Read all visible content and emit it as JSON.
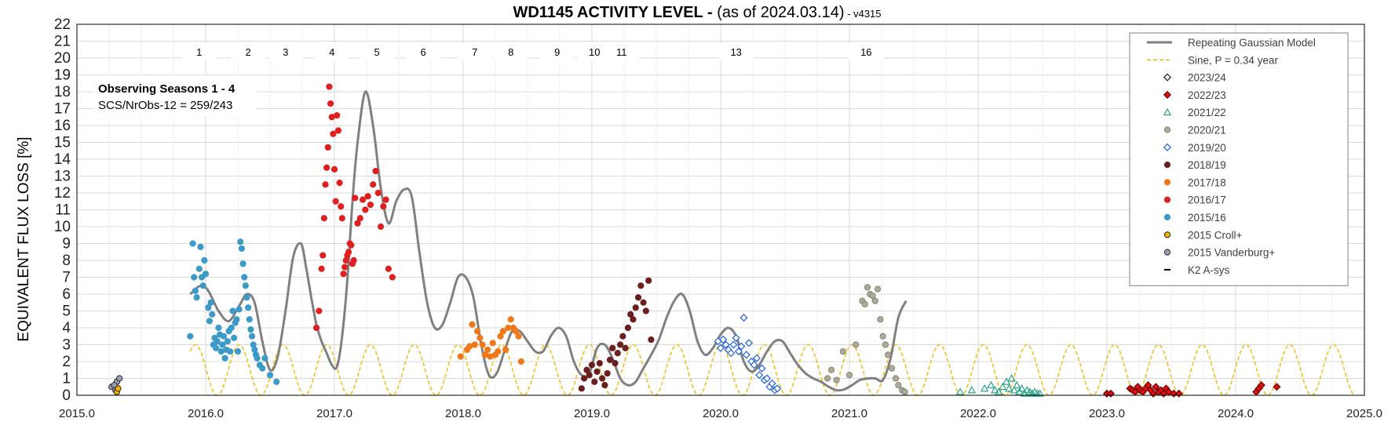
{
  "chart_data": {
    "type": "scatter",
    "title_main": "WD1145 ACTIVITY LEVEL - ",
    "title_sub": "(as of 2024.03.14)",
    "title_version": " - v4315",
    "xlabel": "",
    "ylabel": "EQUIVALENT FLUX LOSS [%]",
    "xlim": [
      2015.0,
      2025.0
    ],
    "ylim": [
      0,
      22
    ],
    "x_ticks": [
      "2015.0",
      "2016.0",
      "2017.0",
      "2018.0",
      "2019.0",
      "2020.0",
      "2021.0",
      "2022.0",
      "2023.0",
      "2024.0",
      "2025.0"
    ],
    "y_ticks": [
      "0",
      "1",
      "2",
      "3",
      "4",
      "5",
      "6",
      "7",
      "8",
      "9",
      "10",
      "11",
      "12",
      "13",
      "14",
      "15",
      "16",
      "17",
      "18",
      "19",
      "20",
      "21",
      "22"
    ],
    "grid": true,
    "legend_position": "top-right",
    "annotation": {
      "title": "Observing Seasons 1 - 4",
      "text": "SCS/NrObs-12 = 259/243"
    },
    "peak_labels": [
      {
        "label": "1",
        "x": 15.95
      },
      {
        "label": "2",
        "x": 16.33
      },
      {
        "label": "3",
        "x": 16.62
      },
      {
        "label": "4",
        "x": 16.98
      },
      {
        "label": "5",
        "x": 17.33
      },
      {
        "label": "6",
        "x": 17.69
      },
      {
        "label": "7",
        "x": 18.09
      },
      {
        "label": "8",
        "x": 18.37
      },
      {
        "label": "9",
        "x": 18.73
      },
      {
        "label": "10",
        "x": 19.02
      },
      {
        "label": "11",
        "x": 19.23
      },
      {
        "label": "13",
        "x": 20.12
      },
      {
        "label": "16",
        "x": 21.13
      }
    ],
    "lines": [
      {
        "name": "Repeating Gaussian Model",
        "color": "#808080",
        "style": "solid",
        "x": [
          2015.88,
          2015.96,
          2016.02,
          2016.1,
          2016.18,
          2016.26,
          2016.32,
          2016.38,
          2016.44,
          2016.5,
          2016.56,
          2016.62,
          2016.68,
          2016.74,
          2016.78,
          2016.82,
          2016.86,
          2016.9,
          2016.94,
          2016.98,
          2017.02,
          2017.06,
          2017.1,
          2017.14,
          2017.18,
          2017.24,
          2017.3,
          2017.36,
          2017.42,
          2017.48,
          2017.54,
          2017.6,
          2017.66,
          2017.72,
          2017.78,
          2017.84,
          2017.9,
          2017.96,
          2018.02,
          2018.08,
          2018.14,
          2018.2,
          2018.26,
          2018.32,
          2018.38,
          2018.44,
          2018.5,
          2018.56,
          2018.62,
          2018.68,
          2018.74,
          2018.8,
          2018.86,
          2018.92,
          2018.98,
          2019.04,
          2019.1,
          2019.16,
          2019.22,
          2019.28,
          2019.34,
          2019.4,
          2019.46,
          2019.52,
          2019.58,
          2019.64,
          2019.7,
          2019.76,
          2019.82,
          2019.88,
          2019.94,
          2020.0,
          2020.06,
          2020.12,
          2020.18,
          2020.24,
          2020.3,
          2020.36,
          2020.42,
          2020.48,
          2020.54,
          2020.6,
          2020.66,
          2020.72,
          2020.78,
          2020.84,
          2020.9,
          2020.96,
          2021.02,
          2021.08,
          2021.14,
          2021.2,
          2021.26,
          2021.32,
          2021.38,
          2021.44
        ],
        "y": [
          6.0,
          6.5,
          6.2,
          5.0,
          4.4,
          5.3,
          6.0,
          5.5,
          3.2,
          1.5,
          2.3,
          5.0,
          8.2,
          9.0,
          7.6,
          5.8,
          4.2,
          3.2,
          2.5,
          1.8,
          1.7,
          3.5,
          6.8,
          11.5,
          15.0,
          18.0,
          16.0,
          12.3,
          10.2,
          11.5,
          12.2,
          11.8,
          8.5,
          5.5,
          4.0,
          4.2,
          5.5,
          7.0,
          7.0,
          5.8,
          3.0,
          1.2,
          1.3,
          2.6,
          3.8,
          3.8,
          3.2,
          2.6,
          2.6,
          3.5,
          4.0,
          3.5,
          2.0,
          1.2,
          1.3,
          2.8,
          3.0,
          2.2,
          1.0,
          0.6,
          0.8,
          1.6,
          2.4,
          3.3,
          4.6,
          5.6,
          6.0,
          5.0,
          3.2,
          2.4,
          2.8,
          3.6,
          4.0,
          3.5,
          2.0,
          1.4,
          1.8,
          2.6,
          3.2,
          3.2,
          2.5,
          1.8,
          1.3,
          1.0,
          0.8,
          0.5,
          0.3,
          0.35,
          0.6,
          0.9,
          1.0,
          1.0,
          0.9,
          2.2,
          4.6,
          5.6
        ],
        "note": ""
      },
      {
        "name": "Sine, P = 0.34 year",
        "color": "#f0c020",
        "style": "dashed",
        "period": 0.34,
        "amplitude": 1.5,
        "offset": 1.5,
        "phase_peak_x": 2016.6,
        "x_start": 2015.88,
        "x_end": 2024.93
      }
    ],
    "series": [
      {
        "name": "2015 Vanderburg+",
        "marker": "circle",
        "color": "#9aa0b8",
        "edge": "#222222",
        "x": [
          2015.27,
          2015.31,
          2015.33,
          2015.29,
          2015.3
        ],
        "y": [
          0.5,
          0.8,
          1.0,
          0.6,
          0.3
        ]
      },
      {
        "name": "2015 Croll+",
        "marker": "circle",
        "color": "#f2b600",
        "edge": "#222222",
        "x": [
          2015.31,
          2015.32
        ],
        "y": [
          0.2,
          0.4
        ]
      },
      {
        "name": "2015/16",
        "marker": "circle",
        "color": "#3b9ac8",
        "edge": "#3b9ac8",
        "x": [
          2015.88,
          2015.9,
          2015.91,
          2015.92,
          2015.93,
          2015.95,
          2015.96,
          2015.97,
          2015.98,
          2015.99,
          2016.0,
          2016.02,
          2016.03,
          2016.04,
          2016.05,
          2016.06,
          2016.07,
          2016.08,
          2016.09,
          2016.1,
          2016.11,
          2016.12,
          2016.13,
          2016.14,
          2016.15,
          2016.16,
          2016.17,
          2016.18,
          2016.19,
          2016.2,
          2016.21,
          2016.22,
          2016.23,
          2016.24,
          2016.25,
          2016.26,
          2016.27,
          2016.28,
          2016.29,
          2016.3,
          2016.31,
          2016.32,
          2016.33,
          2016.34,
          2016.35,
          2016.36,
          2016.37,
          2016.38,
          2016.39,
          2016.4,
          2016.42,
          2016.44,
          2016.46,
          2016.5,
          2016.55
        ],
        "y": [
          3.5,
          9.0,
          7.0,
          6.2,
          5.8,
          7.5,
          8.8,
          7.0,
          6.5,
          8.0,
          7.2,
          5.2,
          4.4,
          5.5,
          4.8,
          3.0,
          3.4,
          2.8,
          3.2,
          4.0,
          3.6,
          2.6,
          3.0,
          3.5,
          2.2,
          2.7,
          3.2,
          3.8,
          2.6,
          4.0,
          5.0,
          3.4,
          4.3,
          4.5,
          2.6,
          5.1,
          9.1,
          8.7,
          7.8,
          7.0,
          6.5,
          5.8,
          5.2,
          4.5,
          3.9,
          3.5,
          3.0,
          2.7,
          2.4,
          2.2,
          1.8,
          1.6,
          2.2,
          1.2,
          0.8
        ]
      },
      {
        "name": "2016/17",
        "marker": "circle",
        "color": "#e02020",
        "edge": "#e02020",
        "x": [
          2016.86,
          2016.88,
          2016.9,
          2016.91,
          2016.92,
          2016.93,
          2016.94,
          2016.95,
          2016.96,
          2016.97,
          2016.98,
          2016.99,
          2017.0,
          2017.01,
          2017.02,
          2017.03,
          2017.04,
          2017.05,
          2017.06,
          2017.07,
          2017.08,
          2017.09,
          2017.1,
          2017.11,
          2017.12,
          2017.13,
          2017.14,
          2017.15,
          2017.16,
          2017.18,
          2017.2,
          2017.22,
          2017.24,
          2017.26,
          2017.28,
          2017.3,
          2017.32,
          2017.34,
          2017.36,
          2017.38,
          2017.4,
          2017.42,
          2017.45
        ],
        "y": [
          4.0,
          5.0,
          7.5,
          8.3,
          10.5,
          12.5,
          13.5,
          14.7,
          18.3,
          17.3,
          16.5,
          15.5,
          13.4,
          11.5,
          16.6,
          15.7,
          12.6,
          11.2,
          10.5,
          7.2,
          7.6,
          8.0,
          8.3,
          8.5,
          9.0,
          8.9,
          7.8,
          8.0,
          11.7,
          10.2,
          10.5,
          11.6,
          11.0,
          11.8,
          11.3,
          12.5,
          13.3,
          12.0,
          10.0,
          11.2,
          11.6,
          7.5,
          7.0
        ]
      },
      {
        "name": "2017/18",
        "marker": "circle",
        "color": "#f07818",
        "edge": "#f07818",
        "x": [
          2017.98,
          2018.03,
          2018.05,
          2018.07,
          2018.09,
          2018.11,
          2018.13,
          2018.15,
          2018.17,
          2018.19,
          2018.21,
          2018.23,
          2018.25,
          2018.27,
          2018.29,
          2018.31,
          2018.33,
          2018.35,
          2018.37,
          2018.39,
          2018.41,
          2018.43,
          2018.45
        ],
        "y": [
          2.3,
          2.7,
          2.9,
          4.2,
          3.0,
          3.8,
          3.4,
          3.0,
          2.4,
          2.7,
          2.3,
          3.1,
          2.4,
          2.6,
          3.5,
          3.8,
          2.7,
          4.0,
          4.5,
          4.0,
          3.8,
          3.5,
          2.0
        ]
      },
      {
        "name": "2018/19",
        "marker": "circle",
        "color": "#6b1e1e",
        "edge": "#6b1e1e",
        "x": [
          2018.92,
          2018.94,
          2018.96,
          2018.98,
          2019.0,
          2019.02,
          2019.04,
          2019.06,
          2019.08,
          2019.1,
          2019.12,
          2019.14,
          2019.16,
          2019.18,
          2019.2,
          2019.22,
          2019.24,
          2019.26,
          2019.28,
          2019.3,
          2019.32,
          2019.34,
          2019.36,
          2019.38,
          2019.4,
          2019.42,
          2019.44,
          2019.46
        ],
        "y": [
          0.4,
          1.0,
          1.5,
          1.2,
          1.8,
          0.8,
          1.4,
          1.9,
          1.0,
          0.6,
          1.3,
          2.1,
          2.8,
          1.9,
          2.5,
          3.0,
          3.5,
          2.8,
          4.0,
          4.8,
          4.5,
          5.2,
          5.8,
          6.5,
          5.5,
          5.0,
          6.8,
          3.3
        ]
      },
      {
        "name": "2019/20",
        "marker": "diamond-open",
        "color": "#2060e0",
        "edge": "#2060e0",
        "x": [
          2019.98,
          2020.0,
          2020.02,
          2020.04,
          2020.06,
          2020.08,
          2020.1,
          2020.12,
          2020.14,
          2020.16,
          2020.18,
          2020.2,
          2020.22,
          2020.24,
          2020.26,
          2020.28,
          2020.3,
          2020.32,
          2020.34,
          2020.36,
          2020.38,
          2020.4,
          2020.42,
          2020.44
        ],
        "y": [
          3.2,
          2.8,
          3.3,
          3.0,
          2.7,
          2.5,
          3.0,
          3.4,
          2.6,
          2.9,
          4.6,
          2.4,
          3.1,
          2.0,
          1.8,
          2.2,
          1.2,
          1.6,
          0.9,
          1.0,
          0.5,
          0.7,
          0.3,
          0.4
        ]
      },
      {
        "name": "2020/21",
        "marker": "circle",
        "color": "#b0ab98",
        "edge": "#808070",
        "x": [
          2020.83,
          2020.86,
          2020.9,
          2020.95,
          2021.0,
          2021.05,
          2021.1,
          2021.12,
          2021.14,
          2021.16,
          2021.18,
          2021.2,
          2021.22,
          2021.24,
          2021.26,
          2021.28,
          2021.3,
          2021.33,
          2021.36,
          2021.38,
          2021.41,
          2021.43
        ],
        "y": [
          1.0,
          1.5,
          0.9,
          2.6,
          1.2,
          3.0,
          5.6,
          5.4,
          6.4,
          6.0,
          5.9,
          5.6,
          6.3,
          4.5,
          3.5,
          3.0,
          2.4,
          1.6,
          1.0,
          0.6,
          0.3,
          0.2
        ]
      },
      {
        "name": "2021/22",
        "marker": "triangle-open",
        "color": "#2aa58a",
        "edge": "#2aa58a",
        "x": [
          2021.86,
          2021.95,
          2022.05,
          2022.1,
          2022.13,
          2022.16,
          2022.19,
          2022.22,
          2022.24,
          2022.26,
          2022.28,
          2022.3,
          2022.32,
          2022.34,
          2022.36,
          2022.38,
          2022.4,
          2022.42,
          2022.44,
          2022.46,
          2022.48
        ],
        "y": [
          0.2,
          0.3,
          0.4,
          0.6,
          0.3,
          0.2,
          0.5,
          0.8,
          0.4,
          1.0,
          0.3,
          0.6,
          0.2,
          0.4,
          0.1,
          0.3,
          0.2,
          0.1,
          0.2,
          0.1,
          0.1
        ]
      },
      {
        "name": "2022/23",
        "marker": "diamond",
        "color": "#e01010",
        "edge": "#700000",
        "x": [
          2023.0,
          2023.03,
          2023.18,
          2023.2,
          2023.22,
          2023.24,
          2023.26,
          2023.28,
          2023.3,
          2023.32,
          2023.34,
          2023.36,
          2023.38,
          2023.4,
          2023.42,
          2023.44,
          2023.46,
          2023.48,
          2023.52,
          2023.56,
          2024.16,
          2024.18,
          2024.2,
          2024.32
        ],
        "y": [
          0.1,
          0.1,
          0.4,
          0.3,
          0.2,
          0.5,
          0.3,
          0.2,
          0.4,
          0.6,
          0.3,
          0.1,
          0.5,
          0.2,
          0.3,
          0.1,
          0.4,
          0.2,
          0.1,
          0.1,
          0.2,
          0.4,
          0.6,
          0.5
        ]
      },
      {
        "name": "2023/24",
        "marker": "diamond-open",
        "color": "#ffffff",
        "edge": "#222222",
        "x": [],
        "y": []
      },
      {
        "name": "K2 A-sys",
        "marker": "dash",
        "color": "#000000",
        "edge": "#000000",
        "x": [],
        "y": []
      }
    ],
    "legend_order": [
      "Repeating Gaussian Model",
      "Sine, P = 0.34 year",
      "2023/24",
      "2022/23",
      "2021/22",
      "2020/21",
      "2019/20",
      "2018/19",
      "2017/18",
      "2016/17",
      "2015/16",
      "2015 Croll+",
      "2015 Vanderburg+",
      "K2 A-sys"
    ]
  }
}
